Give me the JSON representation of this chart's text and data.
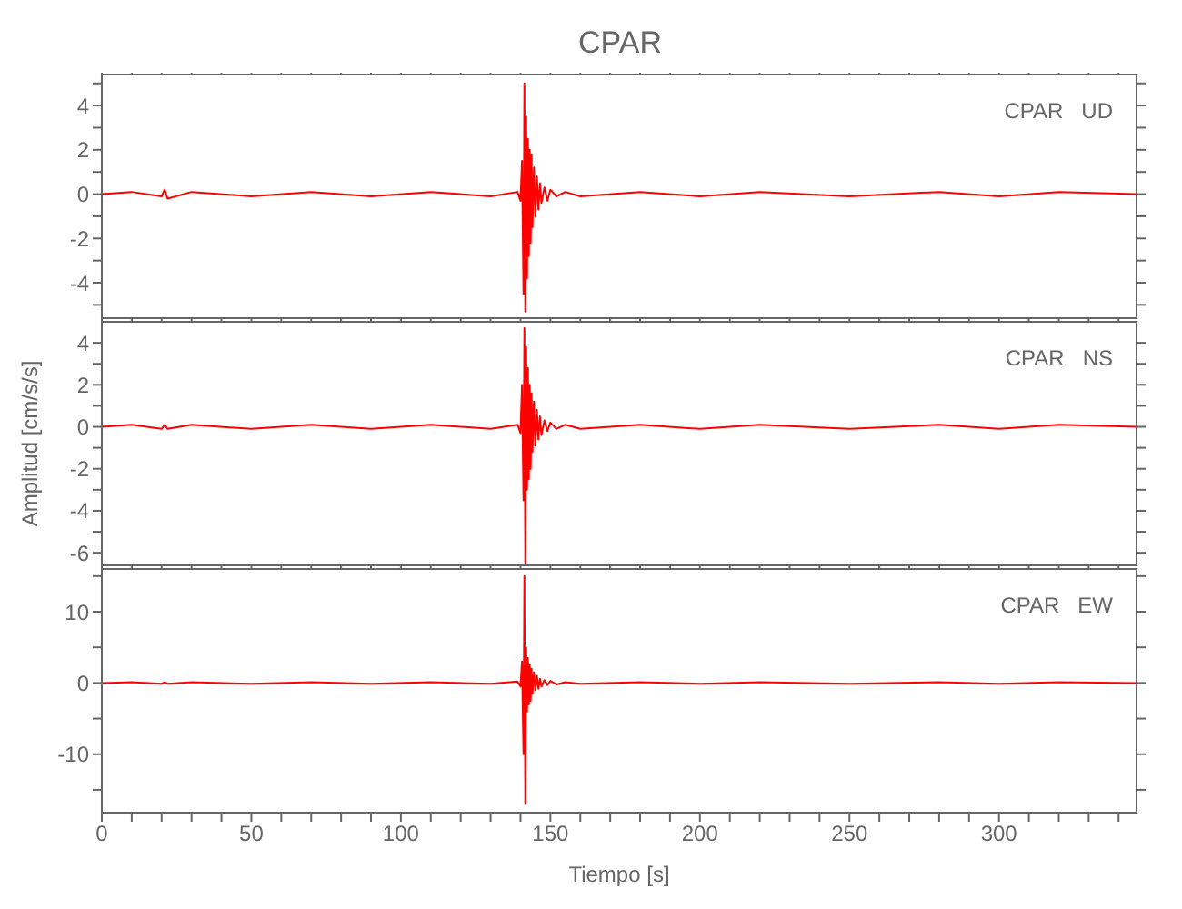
{
  "chart_data": [
    {
      "type": "line",
      "title": "CPAR",
      "annotations": [
        "CPAR   UD"
      ],
      "marker": "none",
      "tick_labels": "y",
      "x": [
        0,
        10,
        20,
        21,
        22,
        30,
        50,
        70,
        90,
        110,
        130,
        139,
        140,
        140.5,
        141,
        141.3,
        141.6,
        141.9,
        142.2,
        142.5,
        142.8,
        143.1,
        143.4,
        143.7,
        144,
        144.5,
        145,
        145.5,
        146,
        146.5,
        147,
        148,
        149,
        150,
        152,
        155,
        160,
        180,
        200,
        220,
        250,
        280,
        300,
        320,
        346
      ],
      "series": [
        {
          "color": "#ff0000",
          "values": [
            0,
            0.1,
            -0.1,
            0.2,
            -0.2,
            0.1,
            -0.1,
            0.1,
            -0.1,
            0.1,
            -0.1,
            0.1,
            -0.3,
            1.5,
            -4.5,
            5.0,
            -5.3,
            3.5,
            -3.8,
            2.5,
            -2.8,
            2.0,
            -2.2,
            1.8,
            -1.5,
            1.2,
            -1.0,
            0.8,
            -0.7,
            0.5,
            -0.4,
            0.3,
            -0.3,
            0.2,
            -0.1,
            0.1,
            -0.1,
            0.1,
            -0.1,
            0.1,
            -0.1,
            0.1,
            -0.1,
            0.1,
            0
          ]
        }
      ],
      "xlim": [
        0,
        346
      ],
      "xticks": [
        0,
        {
          "value": 10,
          "label": null
        },
        {
          "value": 20,
          "label": null
        },
        {
          "value": 30,
          "label": null
        },
        {
          "value": 40,
          "label": null
        },
        50,
        {
          "value": 60,
          "label": null
        },
        {
          "value": 70,
          "label": null
        },
        {
          "value": 80,
          "label": null
        },
        {
          "value": 90,
          "label": null
        },
        100,
        {
          "value": 110,
          "label": null
        },
        {
          "value": 120,
          "label": null
        },
        {
          "value": 130,
          "label": null
        },
        {
          "value": 140,
          "label": null
        },
        150,
        {
          "value": 160,
          "label": null
        },
        {
          "value": 170,
          "label": null
        },
        {
          "value": 180,
          "label": null
        },
        {
          "value": 190,
          "label": null
        },
        200,
        {
          "value": 210,
          "label": null
        },
        {
          "value": 220,
          "label": null
        },
        {
          "value": 230,
          "label": null
        },
        {
          "value": 240,
          "label": null
        },
        250,
        {
          "value": 260,
          "label": null
        },
        {
          "value": 270,
          "label": null
        },
        {
          "value": 280,
          "label": null
        },
        {
          "value": 290,
          "label": null
        },
        300,
        {
          "value": 310,
          "label": null
        },
        {
          "value": 320,
          "label": null
        },
        {
          "value": 330,
          "label": null
        },
        {
          "value": 340,
          "label": null
        }
      ],
      "ylim": [
        -5.6,
        5.4
      ],
      "yticks": [
        {
          "value": -5,
          "label": null
        },
        -4,
        {
          "value": -3,
          "label": null
        },
        -2,
        {
          "value": -1,
          "label": null
        },
        0,
        {
          "value": 1,
          "label": null
        },
        2,
        {
          "value": 3,
          "label": null
        },
        4,
        {
          "value": 5,
          "label": null
        }
      ]
    },
    {
      "type": "line",
      "ylabel": "Amplitud [cm/s/s]",
      "annotations": [
        "CPAR   NS"
      ],
      "marker": "none",
      "tick_labels": "y",
      "x": [
        0,
        10,
        20,
        21,
        22,
        30,
        50,
        70,
        90,
        110,
        130,
        139,
        140,
        140.5,
        141,
        141.3,
        141.6,
        141.9,
        142.2,
        142.5,
        142.8,
        143.1,
        143.4,
        143.7,
        144,
        144.5,
        145,
        145.5,
        146,
        146.5,
        147,
        148,
        149,
        150,
        152,
        155,
        160,
        180,
        200,
        220,
        250,
        280,
        300,
        320,
        346
      ],
      "series": [
        {
          "color": "#ff0000",
          "values": [
            0,
            0.1,
            -0.1,
            0.1,
            -0.1,
            0.1,
            -0.1,
            0.1,
            -0.1,
            0.1,
            -0.1,
            0.1,
            -0.3,
            2.0,
            -3.5,
            4.7,
            -6.5,
            3.8,
            -3.0,
            2.8,
            -2.5,
            2.0,
            -2.0,
            1.6,
            -1.2,
            1.2,
            -0.9,
            0.8,
            -0.6,
            0.5,
            -0.4,
            0.3,
            -0.2,
            0.2,
            -0.1,
            0.1,
            -0.1,
            0.1,
            -0.1,
            0.1,
            -0.1,
            0.1,
            -0.1,
            0.1,
            0
          ]
        }
      ],
      "xlim": [
        0,
        346
      ],
      "xticks": [
        0,
        {
          "value": 10,
          "label": null
        },
        {
          "value": 20,
          "label": null
        },
        {
          "value": 30,
          "label": null
        },
        {
          "value": 40,
          "label": null
        },
        50,
        {
          "value": 60,
          "label": null
        },
        {
          "value": 70,
          "label": null
        },
        {
          "value": 80,
          "label": null
        },
        {
          "value": 90,
          "label": null
        },
        100,
        {
          "value": 110,
          "label": null
        },
        {
          "value": 120,
          "label": null
        },
        {
          "value": 130,
          "label": null
        },
        {
          "value": 140,
          "label": null
        },
        150,
        {
          "value": 160,
          "label": null
        },
        {
          "value": 170,
          "label": null
        },
        {
          "value": 180,
          "label": null
        },
        {
          "value": 190,
          "label": null
        },
        200,
        {
          "value": 210,
          "label": null
        },
        {
          "value": 220,
          "label": null
        },
        {
          "value": 230,
          "label": null
        },
        {
          "value": 240,
          "label": null
        },
        250,
        {
          "value": 260,
          "label": null
        },
        {
          "value": 270,
          "label": null
        },
        {
          "value": 280,
          "label": null
        },
        {
          "value": 290,
          "label": null
        },
        300,
        {
          "value": 310,
          "label": null
        },
        {
          "value": 320,
          "label": null
        },
        {
          "value": 330,
          "label": null
        },
        {
          "value": 340,
          "label": null
        }
      ],
      "ylim": [
        -6.6,
        5
      ],
      "yticks": [
        -6,
        {
          "value": -5,
          "label": null
        },
        -4,
        {
          "value": -3,
          "label": null
        },
        -2,
        {
          "value": -1,
          "label": null
        },
        0,
        {
          "value": 1,
          "label": null
        },
        2,
        {
          "value": 3,
          "label": null
        },
        4
      ]
    },
    {
      "type": "line",
      "xlabel": "Tiempo [s]",
      "annotations": [
        "CPAR   EW"
      ],
      "marker": "none",
      "x": [
        0,
        10,
        20,
        21,
        22,
        30,
        50,
        70,
        90,
        110,
        130,
        139,
        140,
        140.5,
        141,
        141.3,
        141.6,
        141.9,
        142.2,
        142.5,
        142.8,
        143.1,
        143.4,
        143.7,
        144,
        144.5,
        145,
        145.5,
        146,
        146.5,
        147,
        148,
        149,
        150,
        152,
        155,
        160,
        180,
        200,
        220,
        250,
        280,
        300,
        320,
        346
      ],
      "series": [
        {
          "color": "#ff0000",
          "values": [
            0,
            0.1,
            -0.1,
            0.1,
            -0.1,
            0.1,
            -0.1,
            0.1,
            -0.1,
            0.1,
            -0.1,
            0.2,
            -0.5,
            3,
            -10,
            15,
            -17,
            5,
            -4,
            3.5,
            -3,
            2.5,
            -2.5,
            2,
            -1.5,
            1.5,
            -1,
            1,
            -0.8,
            0.6,
            -0.5,
            0.4,
            -0.3,
            0.3,
            -0.2,
            0.1,
            -0.1,
            0.1,
            -0.1,
            0.1,
            -0.1,
            0.1,
            -0.1,
            0.1,
            0
          ]
        }
      ],
      "xlim": [
        0,
        346
      ],
      "xticks": [
        0,
        {
          "value": 10,
          "label": null
        },
        {
          "value": 20,
          "label": null
        },
        {
          "value": 30,
          "label": null
        },
        {
          "value": 40,
          "label": null
        },
        50,
        {
          "value": 60,
          "label": null
        },
        {
          "value": 70,
          "label": null
        },
        {
          "value": 80,
          "label": null
        },
        {
          "value": 90,
          "label": null
        },
        100,
        {
          "value": 110,
          "label": null
        },
        {
          "value": 120,
          "label": null
        },
        {
          "value": 130,
          "label": null
        },
        {
          "value": 140,
          "label": null
        },
        150,
        {
          "value": 160,
          "label": null
        },
        {
          "value": 170,
          "label": null
        },
        {
          "value": 180,
          "label": null
        },
        {
          "value": 190,
          "label": null
        },
        200,
        {
          "value": 210,
          "label": null
        },
        {
          "value": 220,
          "label": null
        },
        {
          "value": 230,
          "label": null
        },
        {
          "value": 240,
          "label": null
        },
        250,
        {
          "value": 260,
          "label": null
        },
        {
          "value": 270,
          "label": null
        },
        {
          "value": 280,
          "label": null
        },
        {
          "value": 290,
          "label": null
        },
        300,
        {
          "value": 310,
          "label": null
        },
        {
          "value": 320,
          "label": null
        },
        {
          "value": 330,
          "label": null
        },
        {
          "value": 340,
          "label": null
        }
      ],
      "ylim": [
        -18.2,
        16
      ],
      "yticks": [
        {
          "value": -15,
          "label": null
        },
        -10,
        {
          "value": -5,
          "label": null
        },
        0,
        {
          "value": 5,
          "label": null
        },
        10,
        {
          "value": 15,
          "label": null
        }
      ]
    }
  ]
}
